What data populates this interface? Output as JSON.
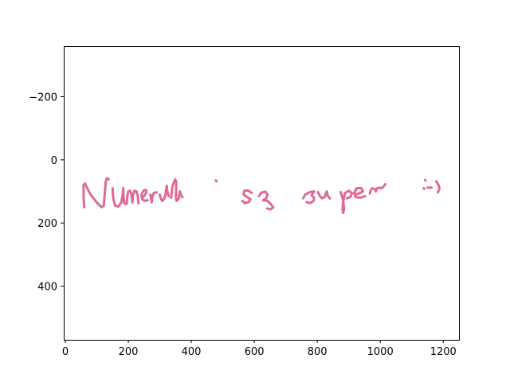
{
  "chart_data": {
    "type": "line",
    "title": "",
    "xlabel": "",
    "ylabel": "",
    "xlim": [
      -5,
      1250
    ],
    "ylim": [
      570,
      -360
    ],
    "y_inverted": true,
    "grid": false,
    "legend": "none",
    "xticks": [
      0,
      200,
      400,
      600,
      800,
      1000,
      1200
    ],
    "yticks": [
      -200,
      0,
      200,
      400
    ],
    "xtick_labels": [
      "0",
      "200",
      "400",
      "600",
      "800",
      "1000",
      "1200"
    ],
    "ytick_labels": [
      "−200",
      "0",
      "200",
      "400"
    ],
    "stroke_color": "#e0699a",
    "description_of_content": "",
    "series": [
      {
        "points": [
          [
            60,
            150
          ],
          [
            58,
            120
          ],
          [
            58,
            80
          ],
          [
            62,
            75
          ],
          [
            80,
            110
          ],
          [
            100,
            135
          ],
          [
            115,
            150
          ],
          [
            122,
            145
          ],
          [
            125,
            110
          ],
          [
            128,
            70
          ],
          [
            132,
            58
          ],
          [
            138,
            62
          ]
        ]
      },
      {
        "points": [
          [
            150,
            90
          ],
          [
            152,
            120
          ],
          [
            158,
            145
          ],
          [
            168,
            148
          ],
          [
            178,
            135
          ],
          [
            182,
            110
          ],
          [
            184,
            90
          ],
          [
            185,
            120
          ],
          [
            188,
            140
          ]
        ]
      },
      {
        "points": [
          [
            195,
            140
          ],
          [
            197,
            115
          ],
          [
            200,
            100
          ],
          [
            206,
            98
          ],
          [
            210,
            110
          ],
          [
            213,
            135
          ],
          [
            215,
            110
          ],
          [
            220,
            98
          ],
          [
            226,
            100
          ],
          [
            230,
            115
          ],
          [
            232,
            138
          ]
        ]
      },
      {
        "points": [
          [
            245,
            120
          ],
          [
            252,
            112
          ],
          [
            258,
            102
          ],
          [
            256,
            95
          ],
          [
            248,
            98
          ],
          [
            242,
            110
          ],
          [
            244,
            125
          ],
          [
            252,
            130
          ],
          [
            262,
            128
          ]
        ]
      },
      {
        "points": [
          [
            270,
            110
          ],
          [
            272,
            120
          ],
          [
            274,
            135
          ],
          [
            276,
            118
          ],
          [
            281,
            105
          ],
          [
            290,
            103
          ]
        ]
      },
      {
        "points": [
          [
            300,
            110
          ],
          [
            303,
            122
          ],
          [
            308,
            130
          ],
          [
            314,
            124
          ],
          [
            318,
            110
          ],
          [
            320,
            95
          ],
          [
            322,
            82
          ],
          [
            324,
            100
          ],
          [
            328,
            115
          ]
        ]
      },
      {
        "points": [
          [
            336,
            120
          ],
          [
            337,
            110
          ],
          [
            340,
            85
          ],
          [
            345,
            70
          ],
          [
            349,
            62
          ],
          [
            352,
            70
          ],
          [
            352,
            90
          ],
          [
            351,
            118
          ],
          [
            353,
            130
          ],
          [
            360,
            123
          ],
          [
            362,
            110
          ],
          [
            364,
            100
          ],
          [
            367,
            112
          ],
          [
            372,
            118
          ]
        ]
      },
      {
        "points": [
          [
            478,
            65
          ],
          [
            480,
            68
          ]
        ]
      },
      {
        "points": [
          [
            592,
            105
          ],
          [
            580,
            97
          ],
          [
            568,
            98
          ],
          [
            566,
            110
          ],
          [
            578,
            118
          ],
          [
            588,
            125
          ],
          [
            582,
            134
          ],
          [
            570,
            137
          ],
          [
            562,
            130
          ]
        ]
      },
      {
        "points": [
          [
            615,
            115
          ],
          [
            622,
            104
          ],
          [
            636,
            101
          ],
          [
            642,
            110
          ],
          [
            638,
            122
          ],
          [
            628,
            128
          ],
          [
            642,
            130
          ],
          [
            652,
            140
          ],
          [
            660,
            150
          ],
          [
            652,
            157
          ],
          [
            641,
            154
          ]
        ]
      },
      {
        "points": [
          [
            755,
            122
          ],
          [
            762,
            110
          ],
          [
            777,
            102
          ],
          [
            790,
            100
          ],
          [
            782,
            112
          ],
          [
            790,
            120
          ],
          [
            788,
            130
          ],
          [
            778,
            137
          ],
          [
            766,
            134
          ]
        ]
      },
      {
        "points": [
          [
            802,
            102
          ],
          [
            808,
            114
          ],
          [
            815,
            122
          ],
          [
            824,
            117
          ],
          [
            828,
            104
          ],
          [
            830,
            100
          ],
          [
            834,
            115
          ],
          [
            840,
            122
          ]
        ]
      },
      {
        "points": [
          [
            874,
            102
          ],
          [
            880,
            120
          ],
          [
            885,
            150
          ],
          [
            884,
            162
          ],
          [
            882,
            168
          ],
          [
            880,
            156
          ],
          [
            882,
            132
          ],
          [
            888,
            105
          ],
          [
            900,
            98
          ],
          [
            910,
            105
          ],
          [
            906,
            117
          ],
          [
            894,
            122
          ]
        ]
      },
      {
        "points": [
          [
            920,
            110
          ],
          [
            932,
            107
          ],
          [
            945,
            100
          ],
          [
            940,
            90
          ],
          [
            925,
            90
          ],
          [
            917,
            105
          ],
          [
            922,
            118
          ],
          [
            937,
            120
          ],
          [
            952,
            115
          ]
        ]
      },
      {
        "points": [
          [
            967,
            107
          ],
          [
            970,
            95
          ],
          [
            975,
            90
          ],
          [
            982,
            93
          ],
          [
            986,
            100
          ],
          [
            988,
            92
          ],
          [
            995,
            88
          ],
          [
            1004,
            90
          ],
          [
            1010,
            85
          ],
          [
            1016,
            77
          ]
        ]
      },
      {
        "points": [
          [
            1142,
            64
          ],
          [
            1144,
            66
          ]
        ]
      },
      {
        "points": [
          [
            1138,
            90
          ],
          [
            1140,
            92
          ]
        ]
      },
      {
        "points": [
          [
            1150,
            88
          ],
          [
            1163,
            88
          ]
        ]
      },
      {
        "points": [
          [
            1178,
            68
          ],
          [
            1185,
            80
          ],
          [
            1188,
            92
          ],
          [
            1183,
            103
          ]
        ]
      }
    ]
  }
}
